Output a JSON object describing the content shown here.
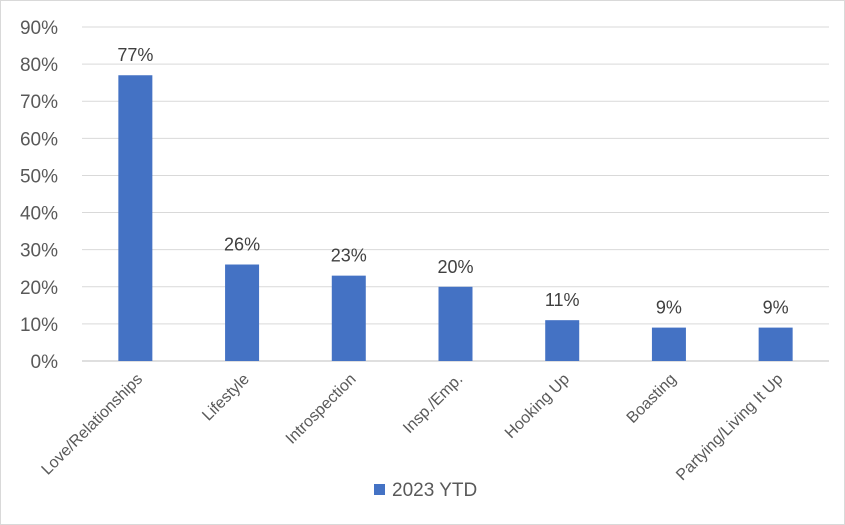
{
  "chart_data": {
    "type": "bar",
    "categories": [
      "Love/Relationships",
      "Lifestyle",
      "Introspection",
      "Insp./Emp.",
      "Hooking Up",
      "Boasting",
      "Partying/Living It Up"
    ],
    "series": [
      {
        "name": "2023 YTD",
        "values": [
          77,
          26,
          23,
          20,
          11,
          9,
          9
        ],
        "color": "#4472C4"
      }
    ],
    "data_labels": [
      "77%",
      "26%",
      "23%",
      "20%",
      "11%",
      "9%",
      "9%"
    ],
    "y_ticks": [
      "0%",
      "10%",
      "20%",
      "30%",
      "40%",
      "50%",
      "60%",
      "70%",
      "80%",
      "90%"
    ],
    "ylim": [
      0,
      90
    ],
    "grid": true,
    "legend_position": "bottom"
  }
}
